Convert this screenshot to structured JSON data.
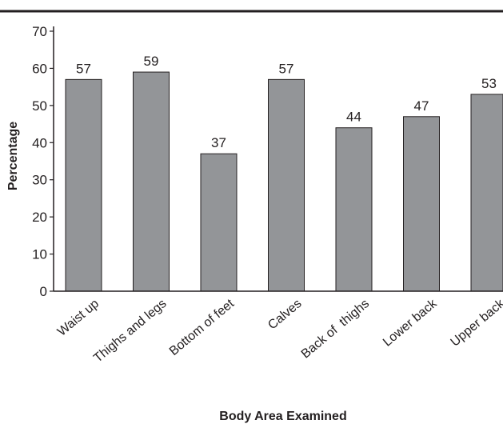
{
  "chart_data": {
    "type": "bar",
    "categories": [
      "Waist up",
      "Thighs and legs",
      "Bottom of feet",
      "Calves",
      "Back of  thighs",
      "Lower back",
      "Upper back"
    ],
    "values": [
      57,
      59,
      37,
      57,
      44,
      47,
      53
    ],
    "data_labels": [
      "57",
      "59",
      "37",
      "57",
      "44",
      "47",
      "53"
    ],
    "title": "",
    "xlabel": "Body Area Examined",
    "ylabel": "Percentage",
    "ylim": [
      0,
      70
    ],
    "yticks": [
      "0",
      "10",
      "20",
      "30",
      "40",
      "50",
      "60",
      "70"
    ],
    "grid": false,
    "legend": "none",
    "bar_color": "#939598",
    "bar_edge_color": "#231f20"
  }
}
